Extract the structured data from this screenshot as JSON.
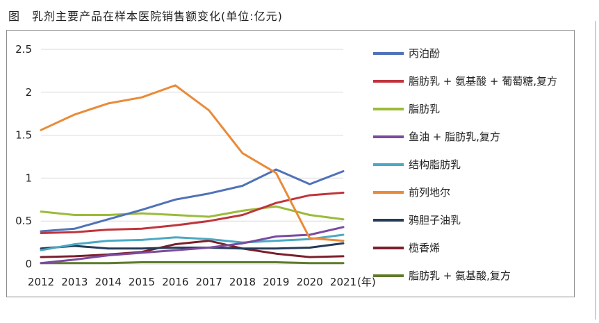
{
  "figure": {
    "title": "图　乳剂主要产品在样本医院销售额变化(单位:亿元)"
  },
  "chart_data": {
    "type": "line",
    "title": "图　乳剂主要产品在样本医院销售额变化(单位:亿元)",
    "xlabel": "(年)",
    "ylabel": "",
    "x": [
      "2012",
      "2013",
      "2014",
      "2015",
      "2016",
      "2017",
      "2018",
      "2019",
      "2020",
      "2021"
    ],
    "ylim": [
      0,
      2.5
    ],
    "yticks": [
      "0",
      "0.5",
      "1",
      "1.5",
      "2",
      "2.5"
    ],
    "grid": true,
    "legend_position": "right",
    "series": [
      {
        "name": "丙泊酚",
        "color": "#4F72B8",
        "values": [
          0.38,
          0.41,
          0.52,
          0.63,
          0.75,
          0.82,
          0.91,
          1.1,
          0.93,
          1.08
        ]
      },
      {
        "name": "脂肪乳 + 氨基酸 + 葡萄糖,复方",
        "color": "#C0343C",
        "values": [
          0.36,
          0.37,
          0.4,
          0.41,
          0.45,
          0.5,
          0.57,
          0.71,
          0.8,
          0.83
        ]
      },
      {
        "name": "脂肪乳",
        "color": "#9BBB3B",
        "values": [
          0.61,
          0.57,
          0.57,
          0.59,
          0.57,
          0.55,
          0.62,
          0.67,
          0.57,
          0.52
        ]
      },
      {
        "name": "鱼油 + 脂肪乳,复方",
        "color": "#7B4AA0",
        "values": [
          0.01,
          0.05,
          0.1,
          0.13,
          0.16,
          0.19,
          0.24,
          0.32,
          0.34,
          0.43
        ]
      },
      {
        "name": "结构脂肪乳",
        "color": "#4BA9C3",
        "values": [
          0.16,
          0.23,
          0.27,
          0.28,
          0.31,
          0.29,
          0.25,
          0.27,
          0.29,
          0.34
        ]
      },
      {
        "name": "前列地尔",
        "color": "#EA8A38",
        "values": [
          1.56,
          1.74,
          1.87,
          1.94,
          2.08,
          1.79,
          1.29,
          1.06,
          0.3,
          0.27
        ]
      },
      {
        "name": "鸦胆子油乳",
        "color": "#253C58",
        "values": [
          0.18,
          0.21,
          0.18,
          0.18,
          0.19,
          0.19,
          0.18,
          0.18,
          0.19,
          0.24
        ]
      },
      {
        "name": "榄香烯",
        "color": "#7A1F2C",
        "values": [
          0.08,
          0.09,
          0.11,
          0.14,
          0.23,
          0.27,
          0.18,
          0.12,
          0.08,
          0.09
        ]
      },
      {
        "name": "脂肪乳 + 氨基酸,复方",
        "color": "#5E7A2C",
        "values": [
          0.01,
          0.01,
          0.01,
          0.02,
          0.02,
          0.02,
          0.02,
          0.02,
          0.01,
          0.01
        ]
      }
    ]
  }
}
